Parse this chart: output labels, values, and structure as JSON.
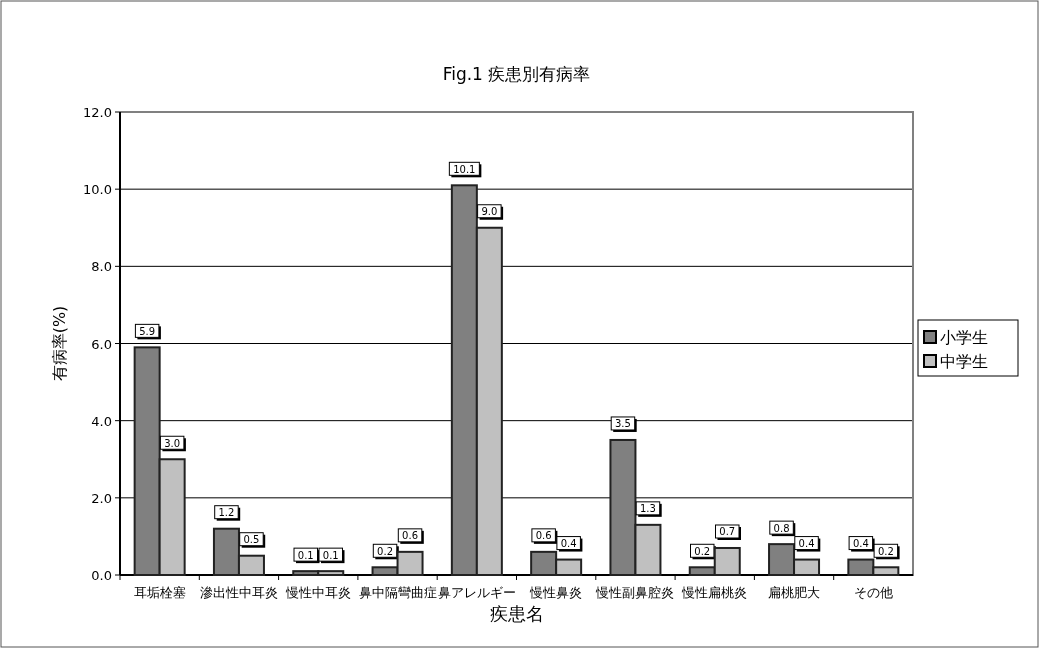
{
  "chart_data": {
    "type": "bar",
    "title": "Fig.1 疾患別有病率",
    "xlabel": "疾患名",
    "ylabel": "有病率(%)",
    "categories": [
      "耳垢栓塞",
      "滲出性中耳炎",
      "慢性中耳炎",
      "鼻中隔彎曲症",
      "鼻アレルギー",
      "慢性鼻炎",
      "慢性副鼻腔炎",
      "慢性扁桃炎",
      "扁桃肥大",
      "その他"
    ],
    "series": [
      {
        "name": "小学生",
        "color": "#808080",
        "values": [
          5.9,
          1.2,
          0.1,
          0.2,
          10.1,
          0.6,
          3.5,
          0.2,
          0.8,
          0.4
        ],
        "value_labels": [
          "5.9",
          "1.2",
          "0.1",
          "0.2",
          "10.1",
          "0.6",
          "3.5",
          "0.2",
          "0.8",
          "0.4"
        ]
      },
      {
        "name": "中学生",
        "color": "#c0c0c0",
        "values": [
          3.0,
          0.5,
          0.1,
          0.6,
          9.0,
          0.4,
          1.3,
          0.7,
          0.4,
          0.2
        ],
        "value_labels": [
          "3.0",
          "0.5",
          "0.1",
          "0.6",
          "9.0",
          "0.4",
          "1.3",
          "0.7",
          "0.4",
          "0.2"
        ]
      }
    ],
    "ylim": [
      0,
      12
    ],
    "yticks": [
      {
        "value": 0,
        "label": "0.0"
      },
      {
        "value": 2,
        "label": "2.0"
      },
      {
        "value": 4,
        "label": "4.0"
      },
      {
        "value": 6,
        "label": "6.0"
      },
      {
        "value": 8,
        "label": "8.0"
      },
      {
        "value": 10,
        "label": "10.0"
      },
      {
        "value": 12,
        "label": "12.0"
      }
    ],
    "grid": "y",
    "legend": "right"
  }
}
